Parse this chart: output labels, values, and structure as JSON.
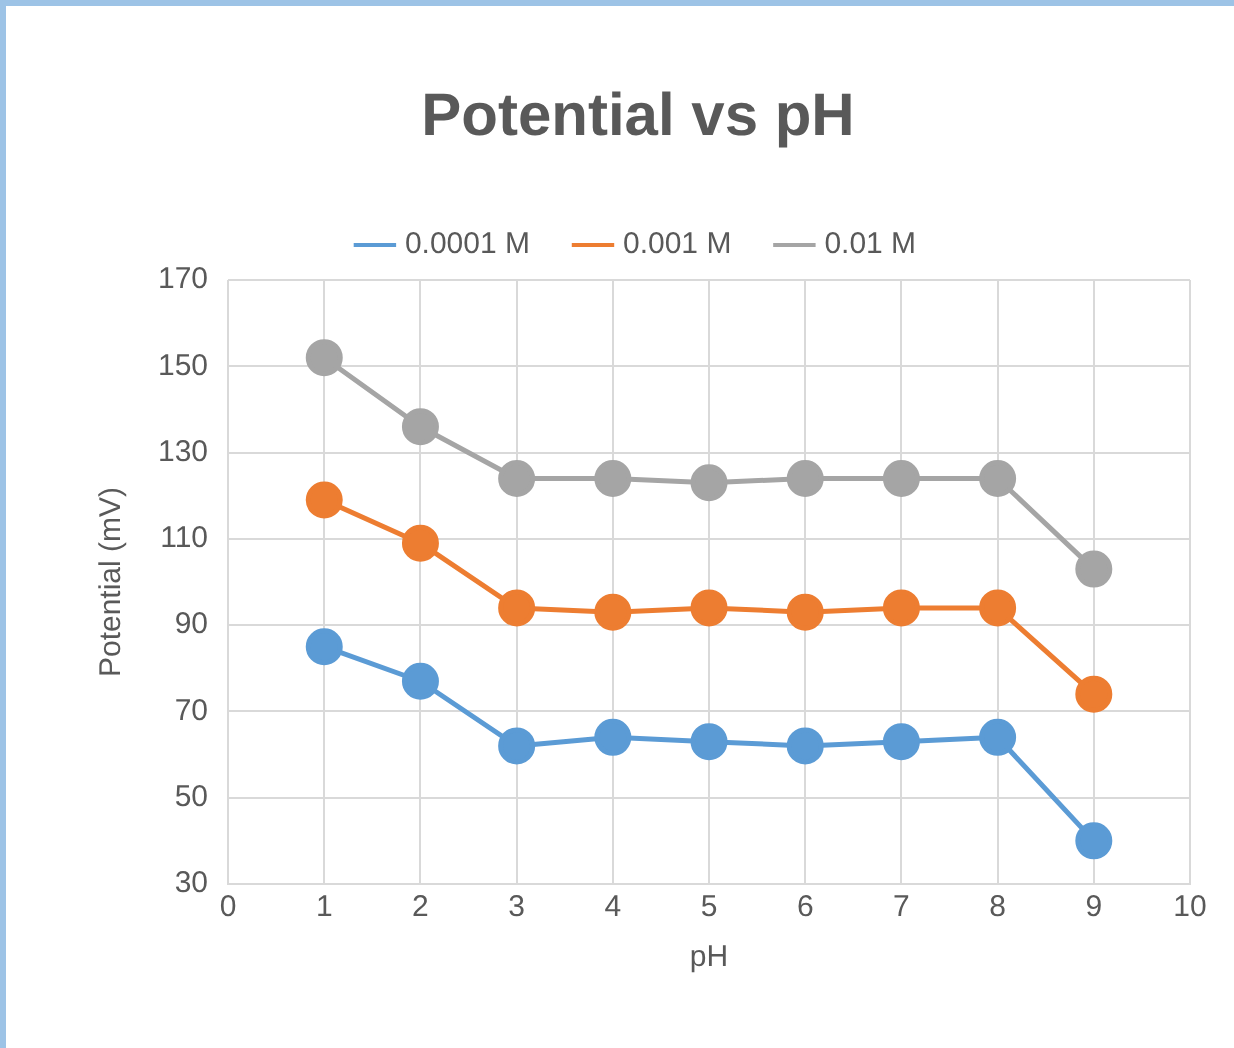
{
  "chart_data": {
    "type": "line",
    "title": "Potential vs pH",
    "xlabel": "pH",
    "ylabel": "Potential (mV)",
    "x": [
      1,
      2,
      3,
      4,
      5,
      6,
      7,
      8,
      9
    ],
    "series": [
      {
        "name": "0.0001 M",
        "color": "#5b9bd5",
        "values": [
          85,
          77,
          62,
          64,
          63,
          62,
          63,
          64,
          40
        ]
      },
      {
        "name": "0.001 M",
        "color": "#ed7d31",
        "values": [
          119,
          109,
          94,
          93,
          94,
          93,
          94,
          94,
          74
        ]
      },
      {
        "name": "0.01 M",
        "color": "#a5a5a5",
        "values": [
          152,
          136,
          124,
          124,
          123,
          124,
          124,
          124,
          103
        ]
      }
    ],
    "xlim": [
      0,
      10
    ],
    "xticks": [
      0,
      1,
      2,
      3,
      4,
      5,
      6,
      7,
      8,
      9,
      10
    ],
    "ylim": [
      30,
      170
    ],
    "yticks": [
      30,
      50,
      70,
      90,
      110,
      130,
      150,
      170
    ],
    "grid": true,
    "legend": "top",
    "marker": "circle",
    "line_style": "solid"
  }
}
